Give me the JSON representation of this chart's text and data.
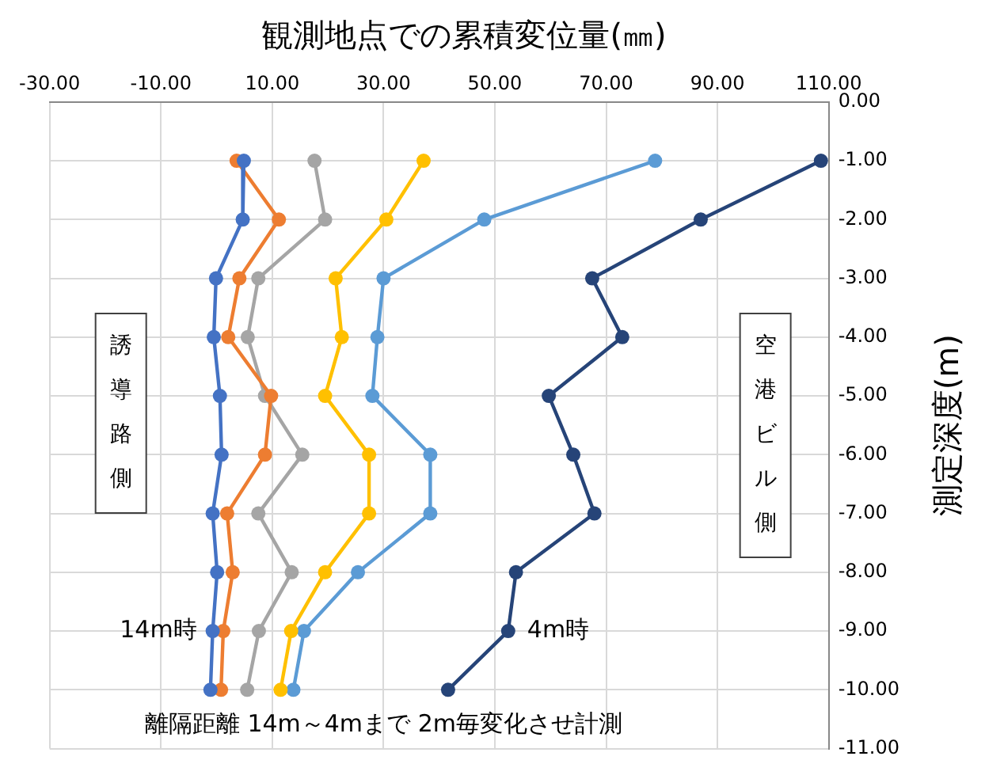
{
  "chart_data": {
    "type": "line",
    "title": "観測地点での累積変位量(㎜)",
    "ylabel": "測定深度(m)",
    "xlim": [
      -30,
      110
    ],
    "xticks": [
      {
        "value": -30,
        "label": "-30.00"
      },
      {
        "value": -10,
        "label": "-10.00"
      },
      {
        "value": 10,
        "label": "10.00"
      },
      {
        "value": 30,
        "label": "30.00"
      },
      {
        "value": 50,
        "label": "50.00"
      },
      {
        "value": 70,
        "label": "70.00"
      },
      {
        "value": 90,
        "label": "90.00"
      },
      {
        "value": 110,
        "label": "110.00"
      }
    ],
    "ylim": [
      -11,
      0
    ],
    "yticks": [
      {
        "value": 0,
        "label": "0.00"
      },
      {
        "value": -1,
        "label": "-1.00"
      },
      {
        "value": -2,
        "label": "-2.00"
      },
      {
        "value": -3,
        "label": "-3.00"
      },
      {
        "value": -4,
        "label": "-4.00"
      },
      {
        "value": -5,
        "label": "-5.00"
      },
      {
        "value": -6,
        "label": "-6.00"
      },
      {
        "value": -7,
        "label": "-7.00"
      },
      {
        "value": -8,
        "label": "-8.00"
      },
      {
        "value": -9,
        "label": "-9.00"
      },
      {
        "value": -10,
        "label": "-10.00"
      },
      {
        "value": -11,
        "label": "-11.00"
      }
    ],
    "grid": true,
    "legend": false,
    "marker": "circle",
    "line_style": "solid",
    "series": [
      {
        "color": "#264478",
        "x": [
          108.6,
          87.0,
          67.5,
          72.9,
          59.7,
          64.1,
          67.9,
          53.8,
          52.4,
          41.6
        ],
        "values": [
          -1,
          -2,
          -3,
          -4,
          -5,
          -6,
          -7,
          -8,
          -9,
          -10
        ]
      },
      {
        "color": "#5b9bd5",
        "x": [
          78.8,
          48.1,
          30.0,
          28.9,
          28.0,
          38.4,
          38.4,
          25.4,
          15.7,
          13.8
        ],
        "values": [
          -1,
          -2,
          -3,
          -4,
          -5,
          -6,
          -7,
          -8,
          -9,
          -10
        ]
      },
      {
        "color": "#ffc000",
        "x": [
          37.2,
          30.5,
          21.4,
          22.5,
          19.5,
          27.4,
          27.4,
          19.5,
          13.4,
          11.5
        ],
        "values": [
          -1,
          -2,
          -3,
          -4,
          -5,
          -6,
          -7,
          -8,
          -9,
          -10
        ]
      },
      {
        "color": "#a5a5a5",
        "x": [
          17.6,
          19.5,
          7.5,
          5.6,
          8.7,
          15.4,
          7.5,
          13.5,
          7.6,
          5.5
        ],
        "values": [
          -1,
          -2,
          -3,
          -4,
          -5,
          -6,
          -7,
          -8,
          -9,
          -10
        ]
      },
      {
        "color": "#ed7d31",
        "x": [
          3.6,
          11.2,
          4.1,
          2.1,
          9.8,
          8.7,
          1.9,
          2.9,
          1.2,
          0.8
        ],
        "values": [
          -1,
          -2,
          -3,
          -4,
          -5,
          -6,
          -7,
          -8,
          -9,
          -10
        ]
      },
      {
        "color": "#4472c4",
        "x": [
          4.9,
          4.7,
          -0.1,
          -0.5,
          0.6,
          0.9,
          -0.7,
          0.1,
          -0.7,
          -1.1
        ],
        "values": [
          -1,
          -2,
          -3,
          -4,
          -5,
          -6,
          -7,
          -8,
          -9,
          -10
        ]
      }
    ],
    "annotations": [
      "誘導路側",
      "空港ビル側",
      "離隔距離 14m～4mまで 2m毎変化させ計測",
      {
        "text": "14m時",
        "x": -0.7,
        "y": -9
      },
      {
        "text": "4m時",
        "x": 52.4,
        "y": -9
      }
    ]
  }
}
